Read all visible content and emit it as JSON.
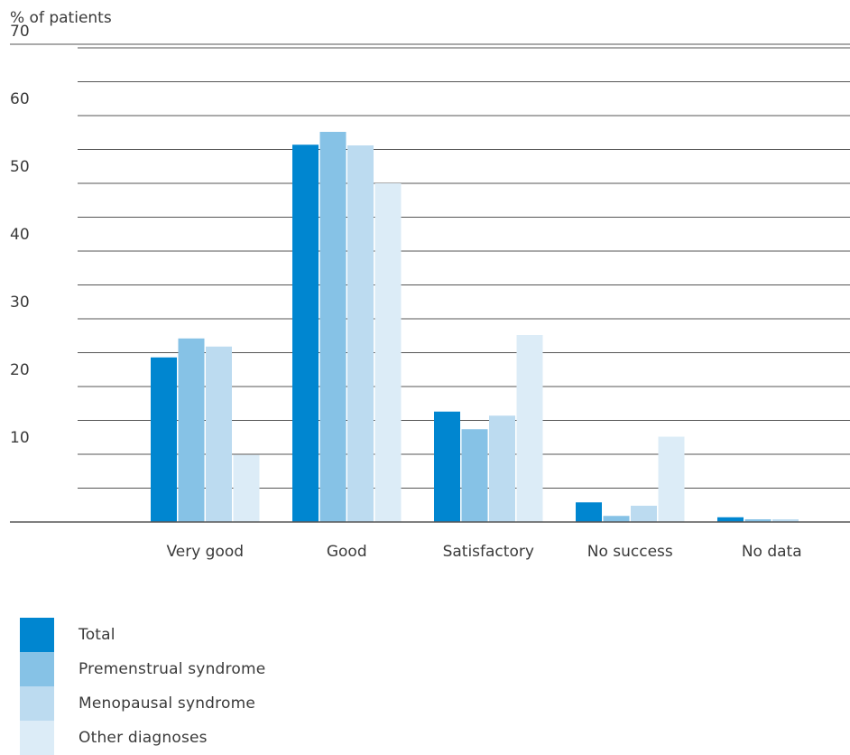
{
  "chart_data": {
    "type": "bar",
    "title": "",
    "ylabel": "% of patients",
    "xlabel": "",
    "ylim": [
      0,
      70
    ],
    "yticks": [
      10,
      20,
      30,
      40,
      50,
      60,
      70
    ],
    "grid": true,
    "legend_position": "bottom-left",
    "categories": [
      "Very good",
      "Good",
      "Satisfactory",
      "No success",
      "No data"
    ],
    "series": [
      {
        "name": "Total",
        "color": "#0086d0",
        "values": [
          24.3,
          55.7,
          16.3,
          2.9,
          0.7
        ]
      },
      {
        "name": "Premenstrual syndrome",
        "color": "#86c2e6",
        "values": [
          27.1,
          57.6,
          13.7,
          0.9,
          0.4
        ]
      },
      {
        "name": "Menopausal syndrome",
        "color": "#bcdbf0",
        "values": [
          25.9,
          55.6,
          15.7,
          2.4,
          0.4
        ]
      },
      {
        "name": "Other diagnoses",
        "color": "#dcecf7",
        "values": [
          9.9,
          50.0,
          27.6,
          12.6,
          0
        ]
      }
    ]
  }
}
